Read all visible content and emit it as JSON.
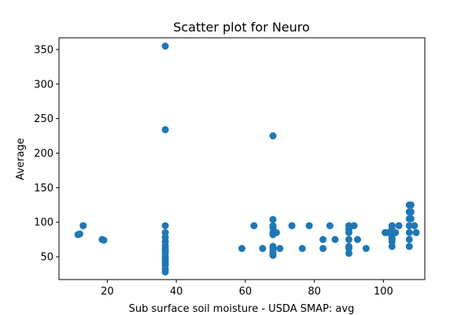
{
  "chart_data": {
    "type": "scatter",
    "title": "Scatter plot for Neuro",
    "xlabel": "Sub surface soil moisture - USDA SMAP: avg",
    "ylabel": "Average",
    "xlim": [
      6,
      112
    ],
    "ylim": [
      17,
      367
    ],
    "xticks": [
      20,
      40,
      60,
      80,
      100
    ],
    "yticks": [
      50,
      100,
      150,
      200,
      250,
      300,
      350
    ],
    "xtick_labels": [
      "20",
      "40",
      "60",
      "80",
      "100"
    ],
    "ytick_labels": [
      "50",
      "100",
      "150",
      "200",
      "250",
      "300",
      "350"
    ],
    "grid": false,
    "legend": null,
    "marker_color": "#1f77b4",
    "points": [
      {
        "x": 11.5,
        "y": 82
      },
      {
        "x": 12.0,
        "y": 83
      },
      {
        "x": 13.0,
        "y": 95
      },
      {
        "x": 18.5,
        "y": 75
      },
      {
        "x": 19.0,
        "y": 74
      },
      {
        "x": 36.8,
        "y": 355
      },
      {
        "x": 36.8,
        "y": 234
      },
      {
        "x": 36.8,
        "y": 95
      },
      {
        "x": 36.8,
        "y": 85
      },
      {
        "x": 36.8,
        "y": 78
      },
      {
        "x": 36.8,
        "y": 72
      },
      {
        "x": 36.8,
        "y": 66
      },
      {
        "x": 36.8,
        "y": 62
      },
      {
        "x": 36.8,
        "y": 58
      },
      {
        "x": 36.8,
        "y": 55
      },
      {
        "x": 36.8,
        "y": 50
      },
      {
        "x": 36.8,
        "y": 46
      },
      {
        "x": 36.8,
        "y": 42
      },
      {
        "x": 36.8,
        "y": 38
      },
      {
        "x": 36.8,
        "y": 32
      },
      {
        "x": 36.8,
        "y": 28
      },
      {
        "x": 59.0,
        "y": 62
      },
      {
        "x": 62.5,
        "y": 95
      },
      {
        "x": 65.0,
        "y": 62
      },
      {
        "x": 68.0,
        "y": 225
      },
      {
        "x": 68.0,
        "y": 104
      },
      {
        "x": 68.0,
        "y": 95
      },
      {
        "x": 68.0,
        "y": 92
      },
      {
        "x": 68.0,
        "y": 85
      },
      {
        "x": 68.0,
        "y": 82
      },
      {
        "x": 68.0,
        "y": 65
      },
      {
        "x": 68.0,
        "y": 62
      },
      {
        "x": 68.0,
        "y": 58
      },
      {
        "x": 68.0,
        "y": 55
      },
      {
        "x": 68.0,
        "y": 52
      },
      {
        "x": 69.0,
        "y": 85
      },
      {
        "x": 70.0,
        "y": 62
      },
      {
        "x": 73.5,
        "y": 95
      },
      {
        "x": 76.5,
        "y": 62
      },
      {
        "x": 78.5,
        "y": 95
      },
      {
        "x": 82.5,
        "y": 75
      },
      {
        "x": 82.5,
        "y": 62
      },
      {
        "x": 84.5,
        "y": 95
      },
      {
        "x": 86.0,
        "y": 75
      },
      {
        "x": 90.0,
        "y": 95
      },
      {
        "x": 90.0,
        "y": 90
      },
      {
        "x": 90.0,
        "y": 85
      },
      {
        "x": 90.0,
        "y": 75
      },
      {
        "x": 90.0,
        "y": 65
      },
      {
        "x": 90.0,
        "y": 62
      },
      {
        "x": 90.0,
        "y": 55
      },
      {
        "x": 91.5,
        "y": 95
      },
      {
        "x": 92.5,
        "y": 75
      },
      {
        "x": 95.0,
        "y": 62
      },
      {
        "x": 100.5,
        "y": 85
      },
      {
        "x": 101.5,
        "y": 85
      },
      {
        "x": 102.5,
        "y": 95
      },
      {
        "x": 102.5,
        "y": 90
      },
      {
        "x": 102.5,
        "y": 85
      },
      {
        "x": 102.5,
        "y": 78
      },
      {
        "x": 102.5,
        "y": 75
      },
      {
        "x": 102.5,
        "y": 72
      },
      {
        "x": 102.5,
        "y": 65
      },
      {
        "x": 103.5,
        "y": 85
      },
      {
        "x": 104.5,
        "y": 95
      },
      {
        "x": 107.5,
        "y": 125
      },
      {
        "x": 107.5,
        "y": 115
      },
      {
        "x": 107.5,
        "y": 105
      },
      {
        "x": 107.5,
        "y": 95
      },
      {
        "x": 107.5,
        "y": 85
      },
      {
        "x": 107.5,
        "y": 75
      },
      {
        "x": 107.5,
        "y": 65
      },
      {
        "x": 108.0,
        "y": 125
      },
      {
        "x": 108.0,
        "y": 115
      },
      {
        "x": 108.0,
        "y": 105
      },
      {
        "x": 109.0,
        "y": 95
      },
      {
        "x": 109.5,
        "y": 85
      }
    ]
  }
}
